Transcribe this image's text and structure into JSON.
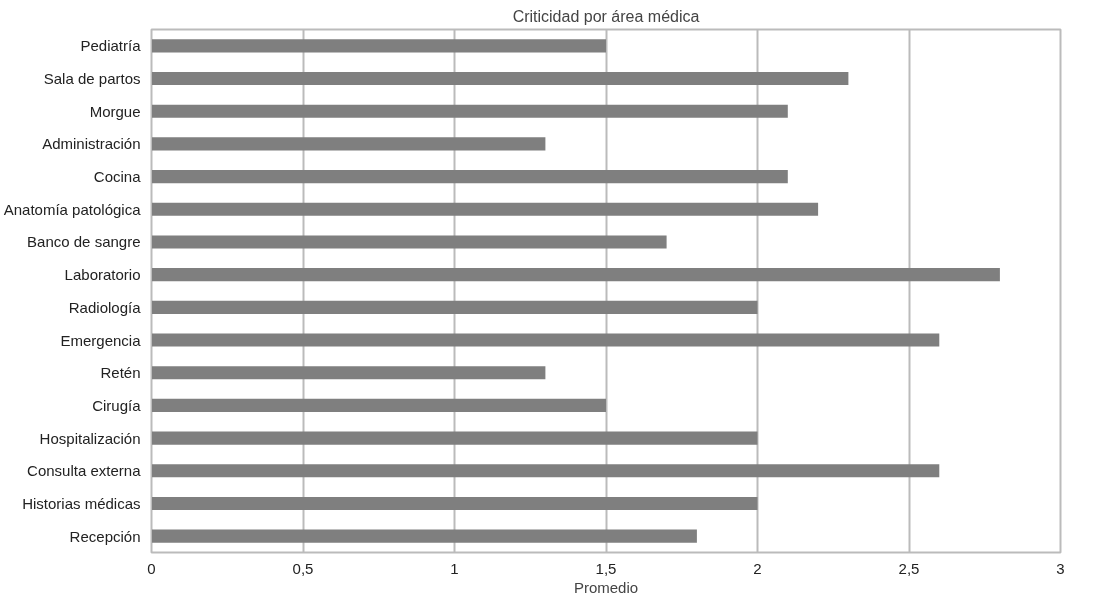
{
  "chart_data": {
    "type": "bar",
    "orientation": "horizontal",
    "title": "Criticidad por área médica",
    "xlabel": "Promedio",
    "categories": [
      "Pediatría",
      "Sala de partos",
      "Morgue",
      "Administración",
      "Cocina",
      "Anatomía patológica",
      "Banco de sangre",
      "Laboratorio",
      "Radiología",
      "Emergencia",
      "Retén",
      "Cirugía",
      "Hospitalización",
      "Consulta externa",
      "Historias médicas",
      "Recepción"
    ],
    "values": [
      1.5,
      2.3,
      2.1,
      1.3,
      2.1,
      2.2,
      1.7,
      2.8,
      2.0,
      2.6,
      1.3,
      1.5,
      2.0,
      2.6,
      2.0,
      1.8
    ],
    "color": "#7f7f7f",
    "xlim": [
      0,
      3
    ],
    "xticks": [
      0,
      {
        "value": 0.5,
        "label": "0,5"
      },
      1,
      {
        "value": 1.5,
        "label": "1,5"
      },
      2,
      {
        "value": 2.5,
        "label": "2,5"
      },
      3
    ],
    "grid": "x"
  }
}
